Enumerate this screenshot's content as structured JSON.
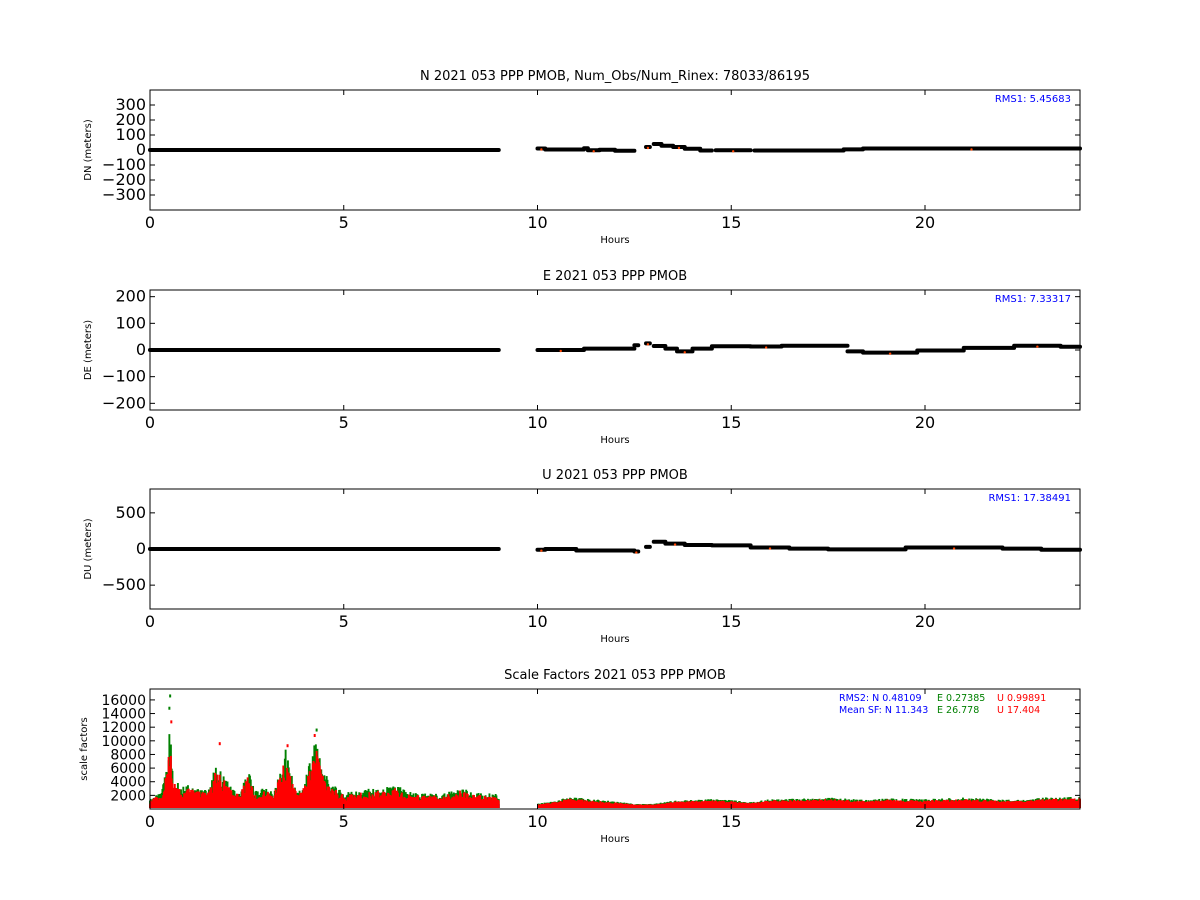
{
  "chart_data": [
    {
      "type": "scatter",
      "title": "N 2021 053 PPP  PMOB, Num_Obs/Num_Rinex: 78033/86195",
      "xlabel": "Hours",
      "ylabel": "DN (meters)",
      "xlim": [
        0,
        24
      ],
      "ylim": [
        -400,
        400
      ],
      "xticks": [
        "0",
        "5",
        "10",
        "15",
        "20"
      ],
      "yticks": [
        "−300",
        "−200",
        "−100",
        "0",
        "100",
        "200",
        "300"
      ],
      "annotation": "RMS1:  5.45683",
      "segments": [
        {
          "x0": 0,
          "x1": 9.0,
          "y": 0
        },
        {
          "x0": 10.0,
          "x1": 10.2,
          "y": 10
        },
        {
          "x0": 10.2,
          "x1": 11.2,
          "y": 3
        },
        {
          "x0": 11.2,
          "x1": 11.3,
          "y": 12
        },
        {
          "x0": 11.3,
          "x1": 11.6,
          "y": -2
        },
        {
          "x0": 11.6,
          "x1": 12.0,
          "y": 2
        },
        {
          "x0": 12.0,
          "x1": 12.5,
          "y": -5
        },
        {
          "x0": 12.8,
          "x1": 12.9,
          "y": 20
        },
        {
          "x0": 13.0,
          "x1": 13.2,
          "y": 40
        },
        {
          "x0": 13.2,
          "x1": 13.5,
          "y": 28
        },
        {
          "x0": 13.5,
          "x1": 13.8,
          "y": 20
        },
        {
          "x0": 13.8,
          "x1": 14.2,
          "y": 8
        },
        {
          "x0": 14.2,
          "x1": 14.5,
          "y": -3
        },
        {
          "x0": 14.6,
          "x1": 15.5,
          "y": -2
        },
        {
          "x0": 15.6,
          "x1": 17.9,
          "y": -3
        },
        {
          "x0": 17.9,
          "x1": 18.4,
          "y": 4
        },
        {
          "x0": 18.4,
          "x1": 24.0,
          "y": 10
        }
      ],
      "series": [
        {
          "color": "#000000"
        }
      ]
    },
    {
      "type": "scatter",
      "title": "E 2021 053 PPP  PMOB",
      "xlabel": "Hours",
      "ylabel": "DE (meters)",
      "xlim": [
        0,
        24
      ],
      "ylim": [
        -225,
        225
      ],
      "xticks": [
        "0",
        "5",
        "10",
        "15",
        "20"
      ],
      "yticks": [
        "−200",
        "−100",
        "0",
        "100",
        "200"
      ],
      "annotation": "RMS1:  7.33317",
      "segments": [
        {
          "x0": 0,
          "x1": 9.0,
          "y": 0
        },
        {
          "x0": 10.0,
          "x1": 11.2,
          "y": 0
        },
        {
          "x0": 11.2,
          "x1": 12.5,
          "y": 5
        },
        {
          "x0": 12.5,
          "x1": 12.6,
          "y": 18
        },
        {
          "x0": 12.8,
          "x1": 12.9,
          "y": 25
        },
        {
          "x0": 13.0,
          "x1": 13.3,
          "y": 15
        },
        {
          "x0": 13.3,
          "x1": 13.6,
          "y": 5
        },
        {
          "x0": 13.6,
          "x1": 14.0,
          "y": -5
        },
        {
          "x0": 14.0,
          "x1": 14.5,
          "y": 5
        },
        {
          "x0": 14.5,
          "x1": 15.5,
          "y": 14
        },
        {
          "x0": 15.5,
          "x1": 16.3,
          "y": 13
        },
        {
          "x0": 16.3,
          "x1": 18.0,
          "y": 16
        },
        {
          "x0": 18.0,
          "x1": 18.4,
          "y": -5
        },
        {
          "x0": 18.4,
          "x1": 19.8,
          "y": -10
        },
        {
          "x0": 19.8,
          "x1": 21.0,
          "y": -2
        },
        {
          "x0": 21.0,
          "x1": 22.3,
          "y": 8
        },
        {
          "x0": 22.3,
          "x1": 23.5,
          "y": 16
        },
        {
          "x0": 23.5,
          "x1": 24.0,
          "y": 12
        }
      ],
      "series": [
        {
          "color": "#000000"
        }
      ]
    },
    {
      "type": "scatter",
      "title": "U 2021 053 PPP  PMOB",
      "xlabel": "Hours",
      "ylabel": "DU (meters)",
      "xlim": [
        0,
        24
      ],
      "ylim": [
        -830,
        830
      ],
      "xticks": [
        "0",
        "5",
        "10",
        "15",
        "20"
      ],
      "yticks": [
        "−500",
        "0",
        "500"
      ],
      "annotation": "RMS1: 17.38491",
      "segments": [
        {
          "x0": 0,
          "x1": 9.0,
          "y": 0
        },
        {
          "x0": 10.0,
          "x1": 10.2,
          "y": -10
        },
        {
          "x0": 10.2,
          "x1": 11.0,
          "y": 0
        },
        {
          "x0": 11.0,
          "x1": 12.5,
          "y": -20
        },
        {
          "x0": 12.5,
          "x1": 12.6,
          "y": -35
        },
        {
          "x0": 12.8,
          "x1": 12.9,
          "y": 30
        },
        {
          "x0": 13.0,
          "x1": 13.3,
          "y": 100
        },
        {
          "x0": 13.3,
          "x1": 13.8,
          "y": 75
        },
        {
          "x0": 13.8,
          "x1": 14.5,
          "y": 55
        },
        {
          "x0": 14.5,
          "x1": 15.5,
          "y": 50
        },
        {
          "x0": 15.5,
          "x1": 16.5,
          "y": 20
        },
        {
          "x0": 16.5,
          "x1": 17.5,
          "y": 5
        },
        {
          "x0": 17.5,
          "x1": 19.5,
          "y": -5
        },
        {
          "x0": 19.5,
          "x1": 22.0,
          "y": 20
        },
        {
          "x0": 22.0,
          "x1": 23.0,
          "y": 5
        },
        {
          "x0": 23.0,
          "x1": 24.0,
          "y": -10
        }
      ],
      "series": [
        {
          "color": "#000000"
        }
      ]
    },
    {
      "type": "scatter",
      "title": "Scale Factors 2021 053 PPP  PMOB",
      "xlabel": "Hours",
      "ylabel": "scale factors",
      "xlim": [
        0,
        24
      ],
      "ylim": [
        0,
        17600
      ],
      "xticks": [
        "0",
        "5",
        "10",
        "15",
        "20"
      ],
      "yticks": [
        "2000",
        "4000",
        "6000",
        "8000",
        "10000",
        "12000",
        "14000",
        "16000"
      ],
      "annotation_rms2": {
        "prefix": "RMS2: N  0.48109",
        "e": "E  0.27385",
        "u": "U  0.99891"
      },
      "annotation_mean": {
        "prefix": "Mean SF: N  11.343",
        "e": "E  26.778",
        "u": "U  17.404"
      },
      "series": [
        {
          "name": "N",
          "color": "#0000ff",
          "base": 700,
          "scale": 0.35
        },
        {
          "name": "E",
          "color": "#008000",
          "base": 1400,
          "scale": 1.15
        },
        {
          "name": "U",
          "color": "#ff0000",
          "base": 1250,
          "scale": 1.0
        }
      ],
      "envelope": [
        [
          0.0,
          1200
        ],
        [
          0.3,
          2200
        ],
        [
          0.45,
          5500
        ],
        [
          0.5,
          9500
        ],
        [
          0.55,
          8000
        ],
        [
          0.6,
          4000
        ],
        [
          0.8,
          2600
        ],
        [
          1.0,
          3000
        ],
        [
          1.2,
          2500
        ],
        [
          1.5,
          2300
        ],
        [
          1.7,
          5500
        ],
        [
          1.9,
          4200
        ],
        [
          2.1,
          2600
        ],
        [
          2.3,
          2000
        ],
        [
          2.55,
          4800
        ],
        [
          2.7,
          2200
        ],
        [
          3.0,
          2600
        ],
        [
          3.2,
          2000
        ],
        [
          3.5,
          7500
        ],
        [
          3.6,
          5000
        ],
        [
          3.8,
          2000
        ],
        [
          4.0,
          3500
        ],
        [
          4.3,
          8800
        ],
        [
          4.5,
          4500
        ],
        [
          4.7,
          3000
        ],
        [
          5.0,
          2000
        ],
        [
          5.5,
          2400
        ],
        [
          6.0,
          2600
        ],
        [
          6.3,
          3200
        ],
        [
          6.6,
          2200
        ],
        [
          7.0,
          1900
        ],
        [
          7.5,
          1900
        ],
        [
          8.0,
          2600
        ],
        [
          8.5,
          2000
        ],
        [
          9.0,
          1800
        ],
        [
          10.0,
          300
        ],
        [
          10.5,
          700
        ],
        [
          10.8,
          1200
        ],
        [
          11.2,
          1000
        ],
        [
          12.0,
          600
        ],
        [
          12.5,
          300
        ],
        [
          13.0,
          300
        ],
        [
          13.5,
          700
        ],
        [
          14.5,
          900
        ],
        [
          15.0,
          800
        ],
        [
          15.5,
          500
        ],
        [
          16.0,
          900
        ],
        [
          17.0,
          1000
        ],
        [
          17.5,
          1100
        ],
        [
          18.0,
          950
        ],
        [
          18.5,
          800
        ],
        [
          19.0,
          1000
        ],
        [
          20.0,
          900
        ],
        [
          21.0,
          1100
        ],
        [
          22.0,
          850
        ],
        [
          22.5,
          800
        ],
        [
          23.0,
          1100
        ],
        [
          24.0,
          1200
        ]
      ],
      "gaps": [
        [
          9.0,
          10.0
        ]
      ]
    }
  ]
}
